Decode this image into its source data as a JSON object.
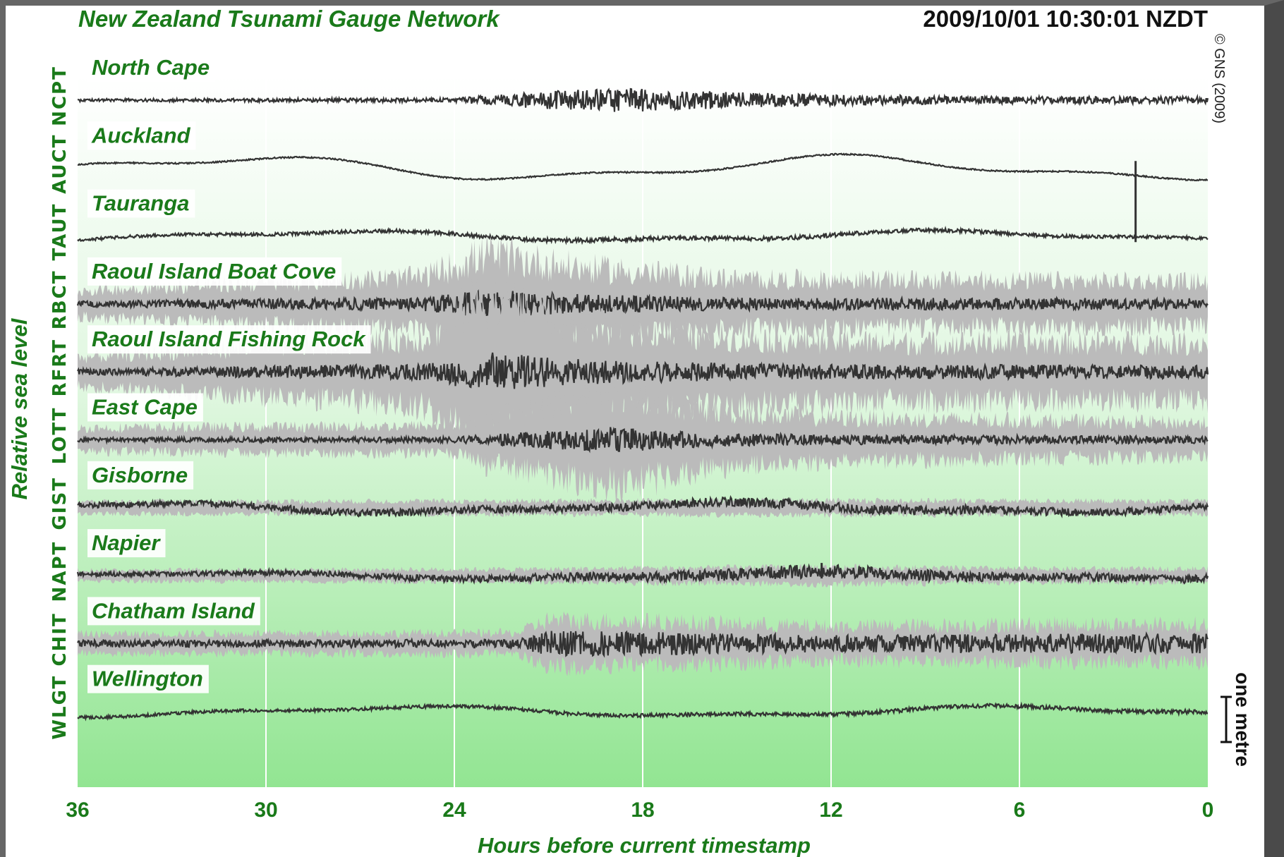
{
  "header": {
    "title": "New Zealand Tsunami Gauge Network",
    "timestamp": "2009/10/01 10:30:01 NZDT",
    "credit": "© GNS (2009)"
  },
  "chart_data": {
    "type": "line",
    "title": "New Zealand Tsunami Gauge Network",
    "xlabel": "Hours before current timestamp",
    "ylabel": "Relative sea level",
    "xlim": [
      36,
      0
    ],
    "x_ticks": [
      "36",
      "30",
      "24",
      "18",
      "12",
      "6",
      "0"
    ],
    "x_tick_values": [
      36,
      30,
      24,
      18,
      12,
      6,
      0
    ],
    "scale_bar_label": "one metre",
    "grid": true,
    "colors": {
      "raw_trace": "#bbbbbb",
      "filtered_trace": "#333333",
      "label_green": "#1a7a1a",
      "background_top": "#ffffff",
      "background_bottom": "#92e592"
    },
    "series": [
      {
        "name": "North Cape",
        "code": "NCPT",
        "noise": 0.25,
        "amp_envelope": [
          [
            36,
            2
          ],
          [
            24,
            3
          ],
          [
            22,
            10
          ],
          [
            19,
            18
          ],
          [
            17,
            14
          ],
          [
            12,
            8
          ],
          [
            6,
            5
          ],
          [
            0,
            5
          ]
        ],
        "raw_spread": 0.5,
        "drift": 0,
        "spike": null
      },
      {
        "name": "Auckland",
        "code": "AUCT",
        "noise": 0.1,
        "amp_envelope": [
          [
            36,
            1
          ],
          [
            0,
            1
          ]
        ],
        "raw_spread": 0.3,
        "drift": 14,
        "spike": {
          "hour": 2.3,
          "up": 10,
          "down": 105
        }
      },
      {
        "name": "Tauranga",
        "code": "TAUT",
        "noise": 0.1,
        "amp_envelope": [
          [
            36,
            2
          ],
          [
            20,
            3
          ],
          [
            12,
            3
          ],
          [
            0,
            2
          ]
        ],
        "raw_spread": 0.3,
        "drift": 6,
        "spike": null
      },
      {
        "name": "Raoul Island Boat Cove",
        "code": "RBCT",
        "noise": 1,
        "amp_envelope": [
          [
            36,
            4
          ],
          [
            25,
            10
          ],
          [
            23,
            20
          ],
          [
            20,
            14
          ],
          [
            15,
            9
          ],
          [
            0,
            8
          ]
        ],
        "raw_spread": 3.2,
        "drift": 0,
        "spike": null
      },
      {
        "name": "Raoul Island Fishing Rock",
        "code": "RFRT",
        "noise": 1,
        "amp_envelope": [
          [
            36,
            4
          ],
          [
            25,
            12
          ],
          [
            23,
            28
          ],
          [
            20,
            18
          ],
          [
            15,
            12
          ],
          [
            10,
            10
          ],
          [
            0,
            10
          ]
        ],
        "raw_spread": 3.5,
        "drift": 0,
        "spike": null
      },
      {
        "name": "East Cape",
        "code": "LOTT",
        "noise": 1,
        "amp_envelope": [
          [
            36,
            3
          ],
          [
            24,
            4
          ],
          [
            22,
            10
          ],
          [
            19,
            18
          ],
          [
            16,
            10
          ],
          [
            12,
            7
          ],
          [
            0,
            5
          ]
        ],
        "raw_spread": 3.5,
        "drift": 0,
        "spike": null
      },
      {
        "name": "Gisborne",
        "code": "GIST",
        "noise": 0.25,
        "amp_envelope": [
          [
            36,
            4
          ],
          [
            20,
            6
          ],
          [
            12,
            7
          ],
          [
            0,
            5
          ]
        ],
        "raw_spread": 0.6,
        "drift": 6,
        "spike": null
      },
      {
        "name": "Napier",
        "code": "NAPT",
        "noise": 0.25,
        "amp_envelope": [
          [
            36,
            3
          ],
          [
            22,
            5
          ],
          [
            12,
            10
          ],
          [
            6,
            6
          ],
          [
            0,
            6
          ]
        ],
        "raw_spread": 0.6,
        "drift": 4,
        "spike": {
          "hour": 12.3,
          "up": 18,
          "down": 4
        }
      },
      {
        "name": "Chatham Island",
        "code": "CHIT",
        "noise": 0.4,
        "amp_envelope": [
          [
            36,
            5
          ],
          [
            22,
            6
          ],
          [
            21,
            18
          ],
          [
            17,
            16
          ],
          [
            12,
            12
          ],
          [
            6,
            14
          ],
          [
            0,
            14
          ]
        ],
        "raw_spread": 1.5,
        "drift": 0,
        "spike": null
      },
      {
        "name": "Wellington",
        "code": "WLGT",
        "noise": 0.1,
        "amp_envelope": [
          [
            36,
            2
          ],
          [
            0,
            3
          ]
        ],
        "raw_spread": 0.3,
        "drift": 6,
        "spike": null
      }
    ]
  }
}
